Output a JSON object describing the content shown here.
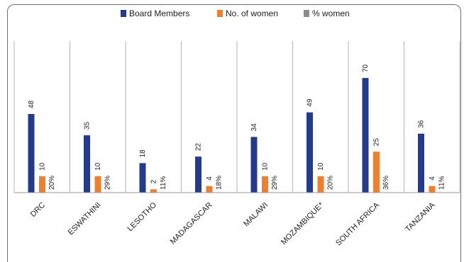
{
  "chart_data": {
    "type": "bar",
    "title": "",
    "xlabel": "",
    "ylabel": "",
    "ylim": [
      0,
      80
    ],
    "grid": false,
    "legend_position": "top",
    "categories": [
      "DRC",
      "ESWATHINI",
      "LESOTHO",
      "MADAGASCAR",
      "MALAWI",
      "MOZAMBIQUE*",
      "SOUTH AFRICA",
      "TANZANIA"
    ],
    "series": [
      {
        "name": "Board Members",
        "color": "#243a8f",
        "values": [
          48,
          35,
          18,
          22,
          34,
          49,
          70,
          36
        ],
        "labels": [
          "48",
          "35",
          "18",
          "22",
          "34",
          "49",
          "70",
          "36"
        ]
      },
      {
        "name": "No. of women",
        "color": "#f07f2d",
        "values": [
          10,
          10,
          2,
          4,
          10,
          10,
          25,
          4
        ],
        "labels": [
          "10",
          "10",
          "2",
          "4",
          "10",
          "10",
          "25",
          "4"
        ]
      },
      {
        "name": "% women",
        "color": "#8c8c8c",
        "values": [
          20,
          29,
          11,
          18,
          29,
          20,
          36,
          11
        ],
        "labels": [
          "20%",
          "29%",
          "11%",
          "18%",
          "29%",
          "20%",
          "36%",
          "11%"
        ]
      }
    ]
  }
}
